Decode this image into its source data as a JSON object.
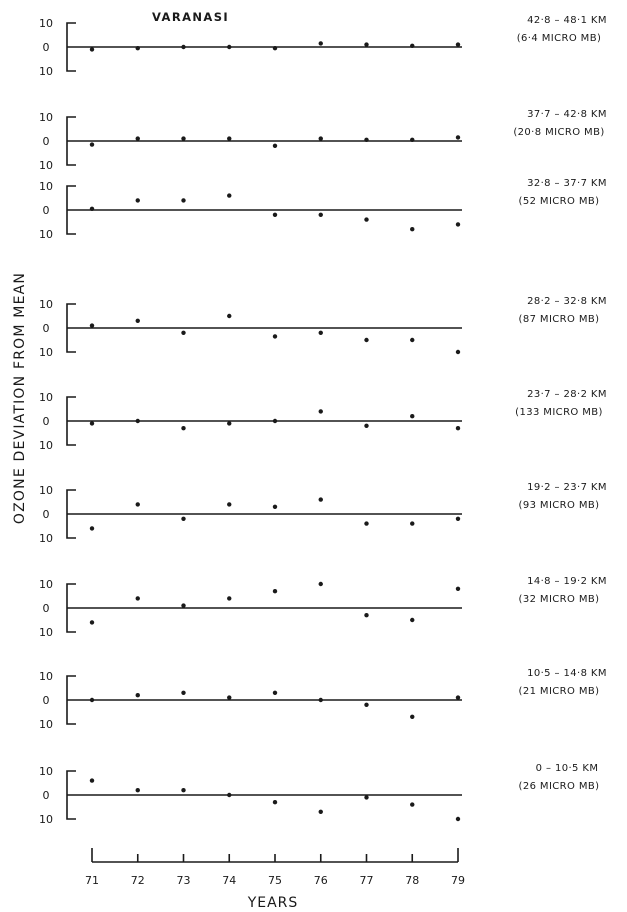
{
  "chart_data": {
    "type": "scatter",
    "station": "VARANASI",
    "ylabel": "OZONE DEVIATION FROM MEAN",
    "xlabel": "YEARS",
    "x_tick_labels": [
      "71",
      "72",
      "73",
      "74",
      "75",
      "76",
      "77",
      "78",
      "79"
    ],
    "x": [
      71,
      72,
      73,
      74,
      75,
      76,
      77,
      78,
      79
    ],
    "y_tick_labels": [
      "10",
      "0",
      "10"
    ],
    "ylim": [
      -10,
      10
    ],
    "panels": [
      {
        "layer": "42·8 – 48·1 KM",
        "pressure": "(6·4 MICRO MB)",
        "values": [
          -1,
          -0.5,
          0,
          0,
          -0.5,
          1.5,
          1,
          0.5,
          1
        ]
      },
      {
        "layer": "37·7 – 42·8 KM",
        "pressure": "(20·8 MICRO MB)",
        "values": [
          -1.5,
          1,
          1,
          1,
          -2,
          1,
          0.5,
          0.5,
          1.5
        ]
      },
      {
        "layer": "32·8 – 37·7 KM",
        "pressure": "(52 MICRO MB)",
        "values": [
          0.5,
          4,
          4,
          6,
          -2,
          -2,
          -4,
          -8,
          -6
        ]
      },
      {
        "layer": "28·2 – 32·8 KM",
        "pressure": "(87 MICRO MB)",
        "values": [
          1,
          3,
          -2,
          5,
          -3.5,
          -2,
          -5,
          -5,
          -10
        ]
      },
      {
        "layer": "23·7 – 28·2 KM",
        "pressure": "(133 MICRO MB)",
        "values": [
          -1,
          0,
          -3,
          -1,
          0,
          4,
          -2,
          2,
          -3
        ]
      },
      {
        "layer": "19·2 – 23·7 KM",
        "pressure": "(93 MICRO MB)",
        "values": [
          -6,
          4,
          -2,
          4,
          3,
          6,
          -4,
          -4,
          -2
        ]
      },
      {
        "layer": "14·8 – 19·2 KM",
        "pressure": "(32 MICRO MB)",
        "values": [
          -6,
          4,
          1,
          4,
          7,
          10,
          -3,
          -5,
          8
        ]
      },
      {
        "layer": "10·5 – 14·8 KM",
        "pressure": "(21 MICRO MB)",
        "values": [
          0,
          2,
          3,
          1,
          3,
          0,
          -2,
          -7,
          1
        ]
      },
      {
        "layer": "0 – 10·5 KM",
        "pressure": "(26 MICRO MB)",
        "values": [
          6,
          2,
          2,
          0,
          -3,
          -7,
          -1,
          -4,
          -10
        ]
      }
    ],
    "grid": false,
    "legend": "none"
  }
}
